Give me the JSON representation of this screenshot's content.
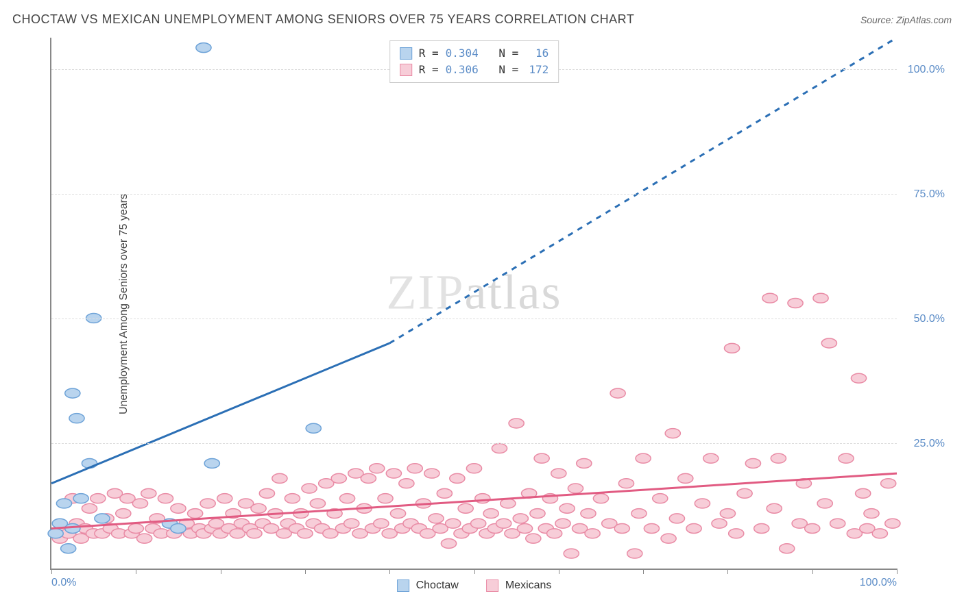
{
  "header": {
    "title": "CHOCTAW VS MEXICAN UNEMPLOYMENT AMONG SENIORS OVER 75 YEARS CORRELATION CHART",
    "source_prefix": "Source: ",
    "source_name": "ZipAtlas.com"
  },
  "axes": {
    "y_label": "Unemployment Among Seniors over 75 years",
    "x_min_label": "0.0%",
    "x_max_label": "100.0%",
    "y_ticks": [
      {
        "pos_pct": 23.5,
        "label": "25.0%"
      },
      {
        "pos_pct": 47.0,
        "label": "50.0%"
      },
      {
        "pos_pct": 70.5,
        "label": "75.0%"
      },
      {
        "pos_pct": 94.0,
        "label": "100.0%"
      }
    ],
    "x_tick_positions_pct": [
      0,
      10,
      20,
      30,
      40,
      50,
      60,
      70,
      80,
      90,
      100
    ],
    "xlim": [
      0,
      100
    ],
    "ylim": [
      0,
      106
    ]
  },
  "series": {
    "choctaw": {
      "label": "Choctaw",
      "color_fill": "#b9d4ee",
      "color_stroke": "#6ea3d8",
      "line_color": "#2b6fb5",
      "r_value": "0.304",
      "n_value": "16",
      "marker_radius": 9,
      "trend_solid": {
        "x1": 0,
        "y1": 17,
        "x2": 40,
        "y2": 45
      },
      "trend_dashed": {
        "x1": 40,
        "y1": 45,
        "x2": 100,
        "y2": 106
      },
      "points": [
        {
          "x": 0.5,
          "y": 7
        },
        {
          "x": 1.0,
          "y": 9
        },
        {
          "x": 1.5,
          "y": 13
        },
        {
          "x": 2.0,
          "y": 4
        },
        {
          "x": 2.5,
          "y": 8
        },
        {
          "x": 2.5,
          "y": 35
        },
        {
          "x": 3.0,
          "y": 30
        },
        {
          "x": 3.5,
          "y": 14
        },
        {
          "x": 4.5,
          "y": 21
        },
        {
          "x": 5.0,
          "y": 50
        },
        {
          "x": 6.0,
          "y": 10
        },
        {
          "x": 14.0,
          "y": 9
        },
        {
          "x": 15.0,
          "y": 8
        },
        {
          "x": 18.0,
          "y": 104
        },
        {
          "x": 19.0,
          "y": 21
        },
        {
          "x": 31.0,
          "y": 28
        }
      ]
    },
    "mexicans": {
      "label": "Mexicans",
      "color_fill": "#f7cdd8",
      "color_stroke": "#e98ba5",
      "line_color": "#e15b82",
      "r_value": "0.306",
      "n_value": "172",
      "marker_radius": 9,
      "trend_solid": {
        "x1": 0,
        "y1": 8,
        "x2": 100,
        "y2": 19
      },
      "points": [
        {
          "x": 1,
          "y": 6
        },
        {
          "x": 1.5,
          "y": 8
        },
        {
          "x": 2,
          "y": 7
        },
        {
          "x": 2.5,
          "y": 14
        },
        {
          "x": 3,
          "y": 9
        },
        {
          "x": 3.5,
          "y": 6
        },
        {
          "x": 4,
          "y": 8
        },
        {
          "x": 4.5,
          "y": 12
        },
        {
          "x": 5,
          "y": 7
        },
        {
          "x": 5.5,
          "y": 14
        },
        {
          "x": 6,
          "y": 7
        },
        {
          "x": 6.5,
          "y": 10
        },
        {
          "x": 7,
          "y": 8
        },
        {
          "x": 7.5,
          "y": 15
        },
        {
          "x": 8,
          "y": 7
        },
        {
          "x": 8.5,
          "y": 11
        },
        {
          "x": 9,
          "y": 14
        },
        {
          "x": 9.5,
          "y": 7
        },
        {
          "x": 10,
          "y": 8
        },
        {
          "x": 10.5,
          "y": 13
        },
        {
          "x": 11,
          "y": 6
        },
        {
          "x": 11.5,
          "y": 15
        },
        {
          "x": 12,
          "y": 8
        },
        {
          "x": 12.5,
          "y": 10
        },
        {
          "x": 13,
          "y": 7
        },
        {
          "x": 13.5,
          "y": 14
        },
        {
          "x": 14,
          "y": 9
        },
        {
          "x": 14.5,
          "y": 7
        },
        {
          "x": 15,
          "y": 12
        },
        {
          "x": 15.5,
          "y": 8
        },
        {
          "x": 16,
          "y": 9
        },
        {
          "x": 16.5,
          "y": 7
        },
        {
          "x": 17,
          "y": 11
        },
        {
          "x": 17.5,
          "y": 8
        },
        {
          "x": 18,
          "y": 7
        },
        {
          "x": 18.5,
          "y": 13
        },
        {
          "x": 19,
          "y": 8
        },
        {
          "x": 19.5,
          "y": 9
        },
        {
          "x": 20,
          "y": 7
        },
        {
          "x": 20.5,
          "y": 14
        },
        {
          "x": 21,
          "y": 8
        },
        {
          "x": 21.5,
          "y": 11
        },
        {
          "x": 22,
          "y": 7
        },
        {
          "x": 22.5,
          "y": 9
        },
        {
          "x": 23,
          "y": 13
        },
        {
          "x": 23.5,
          "y": 8
        },
        {
          "x": 24,
          "y": 7
        },
        {
          "x": 24.5,
          "y": 12
        },
        {
          "x": 25,
          "y": 9
        },
        {
          "x": 25.5,
          "y": 15
        },
        {
          "x": 26,
          "y": 8
        },
        {
          "x": 26.5,
          "y": 11
        },
        {
          "x": 27,
          "y": 18
        },
        {
          "x": 27.5,
          "y": 7
        },
        {
          "x": 28,
          "y": 9
        },
        {
          "x": 28.5,
          "y": 14
        },
        {
          "x": 29,
          "y": 8
        },
        {
          "x": 29.5,
          "y": 11
        },
        {
          "x": 30,
          "y": 7
        },
        {
          "x": 30.5,
          "y": 16
        },
        {
          "x": 31,
          "y": 9
        },
        {
          "x": 31.5,
          "y": 13
        },
        {
          "x": 32,
          "y": 8
        },
        {
          "x": 32.5,
          "y": 17
        },
        {
          "x": 33,
          "y": 7
        },
        {
          "x": 33.5,
          "y": 11
        },
        {
          "x": 34,
          "y": 18
        },
        {
          "x": 34.5,
          "y": 8
        },
        {
          "x": 35,
          "y": 14
        },
        {
          "x": 35.5,
          "y": 9
        },
        {
          "x": 36,
          "y": 19
        },
        {
          "x": 36.5,
          "y": 7
        },
        {
          "x": 37,
          "y": 12
        },
        {
          "x": 37.5,
          "y": 18
        },
        {
          "x": 38,
          "y": 8
        },
        {
          "x": 38.5,
          "y": 20
        },
        {
          "x": 39,
          "y": 9
        },
        {
          "x": 39.5,
          "y": 14
        },
        {
          "x": 40,
          "y": 7
        },
        {
          "x": 40.5,
          "y": 19
        },
        {
          "x": 41,
          "y": 11
        },
        {
          "x": 41.5,
          "y": 8
        },
        {
          "x": 42,
          "y": 17
        },
        {
          "x": 42.5,
          "y": 9
        },
        {
          "x": 43,
          "y": 20
        },
        {
          "x": 43.5,
          "y": 8
        },
        {
          "x": 44,
          "y": 13
        },
        {
          "x": 44.5,
          "y": 7
        },
        {
          "x": 45,
          "y": 19
        },
        {
          "x": 45.5,
          "y": 10
        },
        {
          "x": 46,
          "y": 8
        },
        {
          "x": 46.5,
          "y": 15
        },
        {
          "x": 47,
          "y": 5
        },
        {
          "x": 47.5,
          "y": 9
        },
        {
          "x": 48,
          "y": 18
        },
        {
          "x": 48.5,
          "y": 7
        },
        {
          "x": 49,
          "y": 12
        },
        {
          "x": 49.5,
          "y": 8
        },
        {
          "x": 50,
          "y": 20
        },
        {
          "x": 50.5,
          "y": 9
        },
        {
          "x": 51,
          "y": 14
        },
        {
          "x": 51.5,
          "y": 7
        },
        {
          "x": 52,
          "y": 11
        },
        {
          "x": 52.5,
          "y": 8
        },
        {
          "x": 53,
          "y": 24
        },
        {
          "x": 53.5,
          "y": 9
        },
        {
          "x": 54,
          "y": 13
        },
        {
          "x": 54.5,
          "y": 7
        },
        {
          "x": 55,
          "y": 29
        },
        {
          "x": 55.5,
          "y": 10
        },
        {
          "x": 56,
          "y": 8
        },
        {
          "x": 56.5,
          "y": 15
        },
        {
          "x": 57,
          "y": 6
        },
        {
          "x": 57.5,
          "y": 11
        },
        {
          "x": 58,
          "y": 22
        },
        {
          "x": 58.5,
          "y": 8
        },
        {
          "x": 59,
          "y": 14
        },
        {
          "x": 59.5,
          "y": 7
        },
        {
          "x": 60,
          "y": 19
        },
        {
          "x": 60.5,
          "y": 9
        },
        {
          "x": 61,
          "y": 12
        },
        {
          "x": 61.5,
          "y": 3
        },
        {
          "x": 62,
          "y": 16
        },
        {
          "x": 62.5,
          "y": 8
        },
        {
          "x": 63,
          "y": 21
        },
        {
          "x": 63.5,
          "y": 11
        },
        {
          "x": 64,
          "y": 7
        },
        {
          "x": 65,
          "y": 14
        },
        {
          "x": 66,
          "y": 9
        },
        {
          "x": 67,
          "y": 35
        },
        {
          "x": 67.5,
          "y": 8
        },
        {
          "x": 68,
          "y": 17
        },
        {
          "x": 69,
          "y": 3
        },
        {
          "x": 69.5,
          "y": 11
        },
        {
          "x": 70,
          "y": 22
        },
        {
          "x": 71,
          "y": 8
        },
        {
          "x": 72,
          "y": 14
        },
        {
          "x": 73,
          "y": 6
        },
        {
          "x": 73.5,
          "y": 27
        },
        {
          "x": 74,
          "y": 10
        },
        {
          "x": 75,
          "y": 18
        },
        {
          "x": 76,
          "y": 8
        },
        {
          "x": 77,
          "y": 13
        },
        {
          "x": 78,
          "y": 22
        },
        {
          "x": 79,
          "y": 9
        },
        {
          "x": 80,
          "y": 11
        },
        {
          "x": 80.5,
          "y": 44
        },
        {
          "x": 81,
          "y": 7
        },
        {
          "x": 82,
          "y": 15
        },
        {
          "x": 83,
          "y": 21
        },
        {
          "x": 84,
          "y": 8
        },
        {
          "x": 85,
          "y": 54
        },
        {
          "x": 85.5,
          "y": 12
        },
        {
          "x": 86,
          "y": 22
        },
        {
          "x": 87,
          "y": 4
        },
        {
          "x": 88,
          "y": 53
        },
        {
          "x": 88.5,
          "y": 9
        },
        {
          "x": 89,
          "y": 17
        },
        {
          "x": 90,
          "y": 8
        },
        {
          "x": 91,
          "y": 54
        },
        {
          "x": 91.5,
          "y": 13
        },
        {
          "x": 92,
          "y": 45
        },
        {
          "x": 93,
          "y": 9
        },
        {
          "x": 94,
          "y": 22
        },
        {
          "x": 95,
          "y": 7
        },
        {
          "x": 95.5,
          "y": 38
        },
        {
          "x": 96,
          "y": 15
        },
        {
          "x": 96.5,
          "y": 8
        },
        {
          "x": 97,
          "y": 11
        },
        {
          "x": 98,
          "y": 7
        },
        {
          "x": 99,
          "y": 17
        },
        {
          "x": 99.5,
          "y": 9
        }
      ]
    }
  },
  "legend_top": {
    "r_label": "R =",
    "n_label": "N ="
  },
  "watermark": {
    "part1": "ZIP",
    "part2": "atlas"
  },
  "styling": {
    "background_color": "#ffffff",
    "grid_color": "#dddddd",
    "axis_color": "#888888",
    "tick_label_color": "#5b8cc7",
    "title_color": "#444444",
    "line_width_trend": 3
  }
}
